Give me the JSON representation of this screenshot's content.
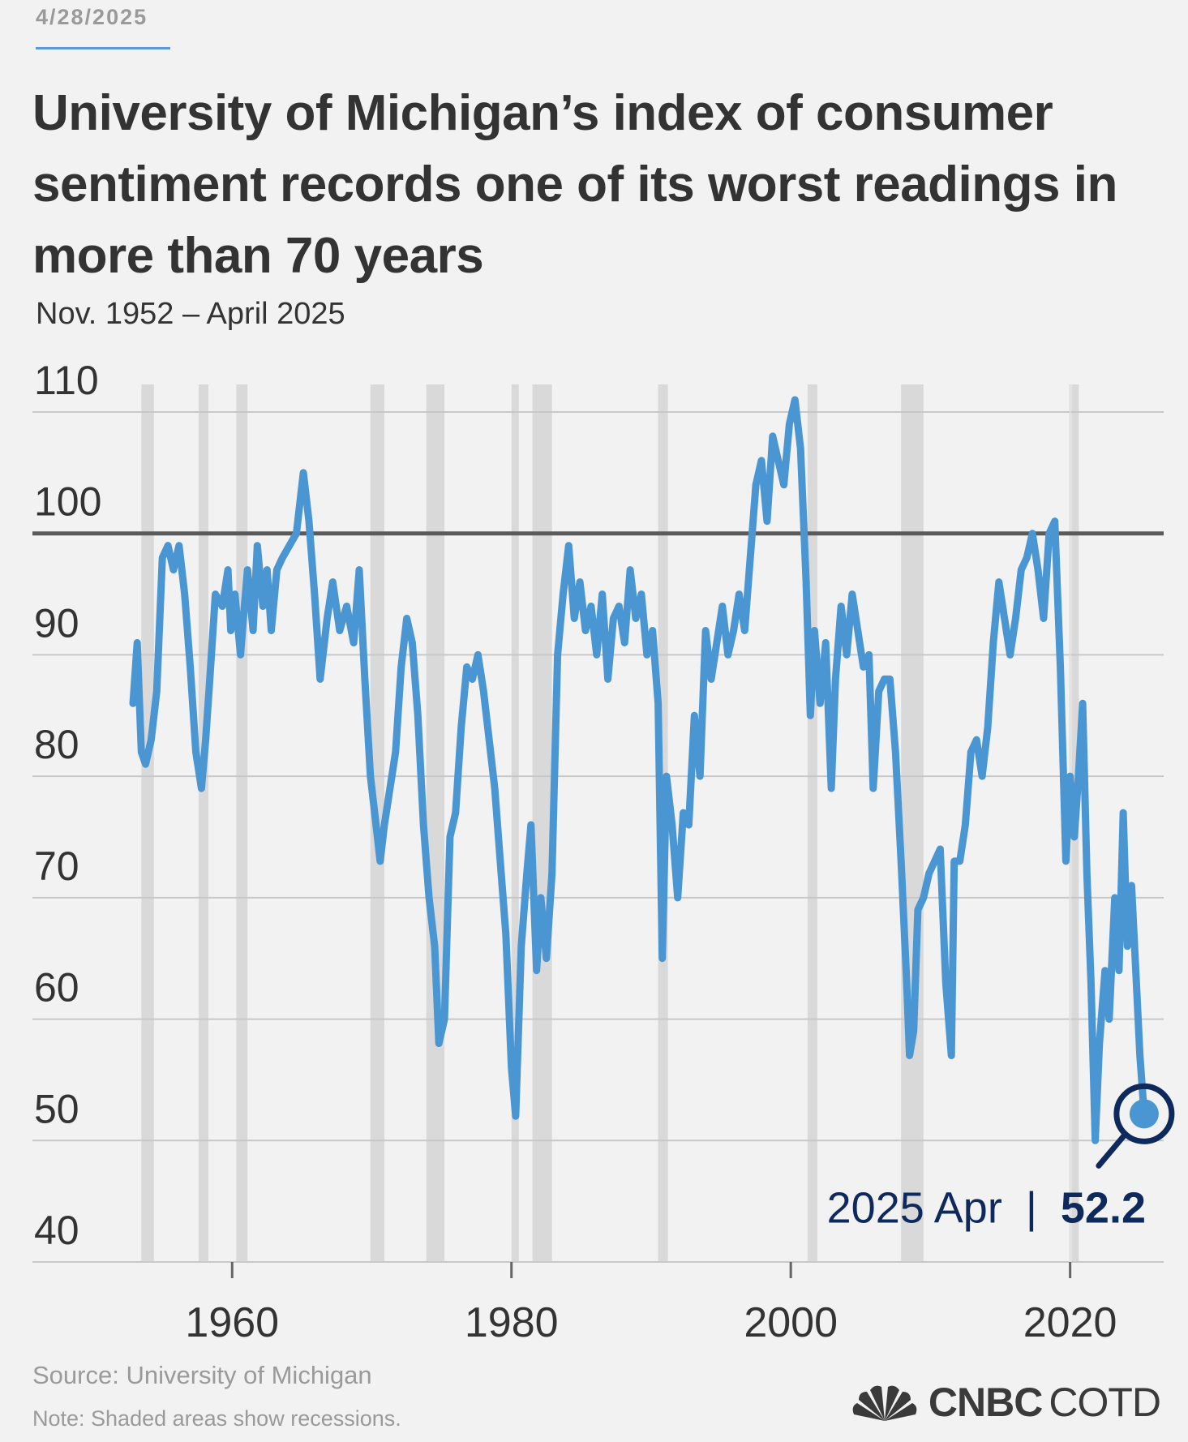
{
  "header": {
    "date": "4/28/2025",
    "title": "University of Michigan’s index of consumer sentiment records one of its worst readings in more than 70 years",
    "subtitle": "Nov. 1952 – April 2025"
  },
  "footer": {
    "source": "Source: University of Michigan",
    "note": "Note: Shaded areas show recessions.",
    "brand_bold": "CNBC",
    "brand_light": "COTD",
    "logo_icon": "nbc-peacock-icon"
  },
  "colors": {
    "line": "#4a96d2",
    "recession": "#d9d9d9",
    "grid": "#c8c8c8",
    "baseline": "#5a5a5a",
    "annotation": "#0e2a5c",
    "background": "#f2f2f2"
  },
  "chart_data": {
    "type": "line",
    "ylim": [
      40,
      110
    ],
    "yticks": [
      110,
      100,
      90,
      80,
      70,
      60,
      50,
      40
    ],
    "xlim": [
      1945.7,
      2026.7
    ],
    "xticks": [
      1960,
      1980,
      2000,
      2020
    ],
    "reference_line": 100,
    "recessions": [
      [
        1953.5,
        1954.4
      ],
      [
        1957.6,
        1958.3
      ],
      [
        1960.3,
        1961.1
      ],
      [
        1969.9,
        1970.9
      ],
      [
        1973.9,
        1975.2
      ],
      [
        1980.0,
        1980.5
      ],
      [
        1981.5,
        1982.9
      ],
      [
        1990.5,
        1991.2
      ],
      [
        2001.2,
        2001.9
      ],
      [
        2007.9,
        2009.5
      ],
      [
        2020.1,
        2020.3
      ]
    ],
    "series": [
      {
        "x": [
          1952.9,
          1953.2,
          1953.5,
          1953.8,
          1954.2,
          1954.6,
          1955.0,
          1955.4,
          1955.8,
          1956.2,
          1956.6,
          1957.0,
          1957.4,
          1957.8,
          1958.1,
          1958.4,
          1958.8,
          1959.3,
          1959.7,
          1959.9,
          1960.2,
          1960.6,
          1960.8,
          1961.1,
          1961.5,
          1961.8,
          1962.2,
          1962.5,
          1962.8,
          1963.2,
          1963.6,
          1964.1,
          1964.6,
          1965.1,
          1965.5,
          1965.9,
          1966.3,
          1966.8,
          1967.2,
          1967.7,
          1968.2,
          1968.7,
          1969.1,
          1969.5,
          1969.9,
          1970.3,
          1970.6,
          1970.9,
          1971.3,
          1971.7,
          1972.1,
          1972.5,
          1972.9,
          1973.3,
          1973.7,
          1974.1,
          1974.5,
          1974.8,
          1975.2,
          1975.6,
          1976.0,
          1976.4,
          1976.8,
          1977.2,
          1977.6,
          1978.0,
          1978.4,
          1978.8,
          1979.2,
          1979.6,
          1980.0,
          1980.3,
          1980.7,
          1981.1,
          1981.4,
          1981.8,
          1982.1,
          1982.5,
          1982.9,
          1983.3,
          1983.7,
          1984.1,
          1984.5,
          1984.9,
          1985.3,
          1985.7,
          1986.1,
          1986.5,
          1986.9,
          1987.3,
          1987.7,
          1988.1,
          1988.5,
          1988.9,
          1989.3,
          1989.7,
          1990.1,
          1990.5,
          1990.8,
          1991.1,
          1991.5,
          1991.9,
          1992.3,
          1992.7,
          1993.1,
          1993.5,
          1993.9,
          1994.3,
          1994.7,
          1995.1,
          1995.5,
          1995.9,
          1996.3,
          1996.7,
          1997.1,
          1997.5,
          1997.9,
          1998.3,
          1998.7,
          1999.1,
          1999.5,
          1999.9,
          2000.3,
          2000.7,
          2001.1,
          2001.4,
          2001.7,
          2002.1,
          2002.5,
          2002.9,
          2003.2,
          2003.6,
          2004.0,
          2004.4,
          2004.8,
          2005.2,
          2005.6,
          2005.9,
          2006.3,
          2006.7,
          2007.1,
          2007.5,
          2007.9,
          2008.3,
          2008.5,
          2008.8,
          2009.1,
          2009.5,
          2009.9,
          2010.3,
          2010.7,
          2011.1,
          2011.5,
          2011.7,
          2012.1,
          2012.5,
          2012.9,
          2013.3,
          2013.7,
          2014.1,
          2014.5,
          2014.9,
          2015.3,
          2015.7,
          2016.1,
          2016.5,
          2016.9,
          2017.3,
          2017.7,
          2018.1,
          2018.5,
          2018.9,
          2019.3,
          2019.7,
          2020.0,
          2020.3,
          2020.6,
          2020.9,
          2021.2,
          2021.5,
          2021.8,
          2022.1,
          2022.5,
          2022.8,
          2023.2,
          2023.5,
          2023.8,
          2024.1,
          2024.4,
          2024.7,
          2025.0,
          2025.3
        ],
        "values": [
          86,
          91,
          82,
          81,
          83,
          87,
          98,
          99,
          97,
          99,
          95,
          89,
          82,
          79,
          83,
          88,
          95,
          94,
          97,
          92,
          95,
          90,
          93,
          97,
          92,
          99,
          94,
          97,
          92,
          97,
          98,
          99,
          100,
          105,
          101,
          95,
          88,
          93,
          96,
          92,
          94,
          91,
          97,
          88,
          80,
          76,
          73,
          76,
          79,
          82,
          89,
          93,
          91,
          85,
          76,
          70,
          66,
          58,
          60,
          75,
          77,
          84,
          89,
          88,
          90,
          87,
          83,
          79,
          73,
          67,
          56,
          52,
          66,
          72,
          76,
          64,
          70,
          65,
          72,
          90,
          95,
          99,
          93,
          96,
          92,
          94,
          90,
          95,
          88,
          93,
          94,
          91,
          97,
          93,
          95,
          90,
          92,
          86,
          65,
          80,
          76,
          70,
          77,
          76,
          85,
          80,
          92,
          88,
          91,
          94,
          90,
          92,
          95,
          92,
          98,
          104,
          106,
          101,
          108,
          106,
          104,
          109,
          111,
          107,
          96,
          85,
          92,
          86,
          91,
          79,
          88,
          94,
          90,
          95,
          92,
          89,
          90,
          79,
          87,
          88,
          88,
          82,
          73,
          63,
          57,
          59,
          69,
          70,
          72,
          73,
          74,
          63,
          57,
          73,
          73,
          76,
          82,
          83,
          80,
          84,
          91,
          96,
          93,
          90,
          93,
          97,
          98,
          100,
          97,
          93,
          100,
          101,
          89,
          73,
          80,
          75,
          80,
          86,
          72,
          63,
          50,
          58,
          64,
          60,
          70,
          64,
          77,
          66,
          71,
          64,
          57,
          52.2
        ]
      }
    ],
    "annotation": {
      "x": 2025.3,
      "y": 52.2,
      "period": "2025 Apr",
      "separator": "|",
      "value_label": "52.2"
    }
  }
}
